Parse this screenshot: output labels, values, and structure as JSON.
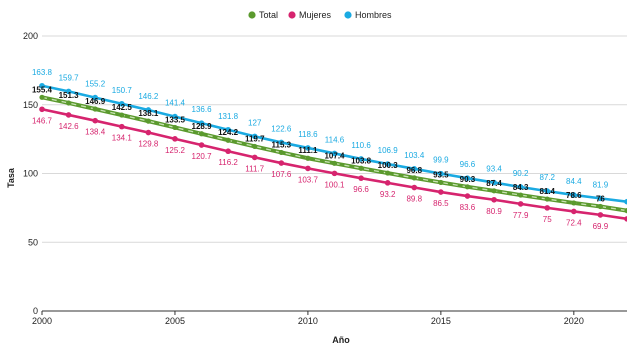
{
  "chart_data": {
    "type": "line",
    "xlabel": "Año",
    "ylabel": "Tasa",
    "xlim": [
      2000,
      2022
    ],
    "ylim": [
      0,
      200
    ],
    "x_ticks": [
      "2000",
      "2005",
      "2010",
      "2015",
      "2020"
    ],
    "y_ticks": [
      "0",
      "50",
      "100",
      "150",
      "200"
    ],
    "grid": "horizontal",
    "legend_position": "top-center",
    "x": [
      2000,
      2001,
      2002,
      2003,
      2004,
      2005,
      2006,
      2007,
      2008,
      2009,
      2010,
      2011,
      2012,
      2013,
      2014,
      2015,
      2016,
      2017,
      2018,
      2019,
      2020,
      2021,
      2022
    ],
    "series": [
      {
        "name": "Total",
        "color": "#5b9a2e",
        "values": [
          155.4,
          151.3,
          146.9,
          142.5,
          138.1,
          133.5,
          128.9,
          124.2,
          119.7,
          115.3,
          111.1,
          107.4,
          103.8,
          100.3,
          96.8,
          93.5,
          90.3,
          87.4,
          84.3,
          81.4,
          78.6,
          76,
          73
        ],
        "labels": [
          "155.4",
          "151.3",
          "146.9",
          "142.5",
          "138.1",
          "133.5",
          "128.9",
          "124.2",
          "119.7",
          "115.3",
          "111.1",
          "107.4",
          "103.8",
          "100.3",
          "96.8",
          "93.5",
          "90.3",
          "87.4",
          "84.3",
          "81.4",
          "78.6",
          "76",
          ""
        ]
      },
      {
        "name": "Mujeres",
        "color": "#d6246e",
        "values": [
          146.7,
          142.6,
          138.4,
          134.1,
          129.8,
          125.2,
          120.7,
          116.2,
          111.7,
          107.6,
          103.7,
          100.1,
          96.6,
          93.2,
          89.8,
          86.5,
          83.6,
          80.9,
          77.9,
          75,
          72.4,
          69.9,
          67
        ],
        "labels": [
          "146.7",
          "142.6",
          "138.4",
          "134.1",
          "129.8",
          "125.2",
          "120.7",
          "116.2",
          "111.7",
          "107.6",
          "103.7",
          "100.1",
          "96.6",
          "93.2",
          "89.8",
          "86.5",
          "83.6",
          "80.9",
          "77.9",
          "75",
          "72.4",
          "69.9",
          ""
        ]
      },
      {
        "name": "Hombres",
        "color": "#1aaae2",
        "values": [
          163.8,
          159.7,
          155.2,
          150.7,
          146.2,
          141.4,
          136.6,
          131.8,
          127,
          122.6,
          118.6,
          114.6,
          110.6,
          106.9,
          103.4,
          99.9,
          96.6,
          93.4,
          90.2,
          87.2,
          84.4,
          81.9,
          79.5
        ],
        "labels": [
          "163.8",
          "159.7",
          "155.2",
          "150.7",
          "146.2",
          "141.4",
          "136.6",
          "131.8",
          "127",
          "122.6",
          "118.6",
          "114.6",
          "110.6",
          "106.9",
          "103.4",
          "99.9",
          "96.6",
          "93.4",
          "90.2",
          "87.2",
          "84.4",
          "81.9",
          ""
        ]
      }
    ]
  }
}
